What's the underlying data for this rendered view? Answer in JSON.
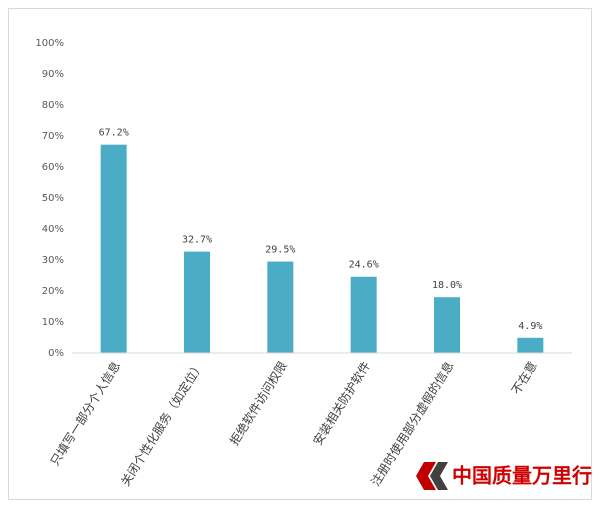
{
  "chart_data": {
    "type": "bar",
    "categories": [
      "只填写一部分个人信息",
      "关闭个性化服务（如定位）",
      "拒绝软件访问权限",
      "安装相关防护软件",
      "注册时使用部分虚假的信息",
      "不在意"
    ],
    "values": [
      67.2,
      32.7,
      29.5,
      24.6,
      18.0,
      4.9
    ],
    "value_labels": [
      "67.2%",
      "32.7%",
      "29.5%",
      "24.6%",
      "18.0%",
      "4.9%"
    ],
    "color": "#4bacc6",
    "ylim": [
      0,
      100
    ],
    "yticks": [
      {
        "value": 0,
        "label": "0%"
      },
      {
        "value": 10,
        "label": "10%"
      },
      {
        "value": 20,
        "label": "20%"
      },
      {
        "value": 30,
        "label": "30%"
      },
      {
        "value": 40,
        "label": "40%"
      },
      {
        "value": 50,
        "label": "50%"
      },
      {
        "value": 60,
        "label": "60%"
      },
      {
        "value": 70,
        "label": "70%"
      },
      {
        "value": 80,
        "label": "80%"
      },
      {
        "value": 90,
        "label": "90%"
      },
      {
        "value": 100,
        "label": "100%"
      }
    ],
    "grid": false
  },
  "watermark": "中国质量万里行"
}
